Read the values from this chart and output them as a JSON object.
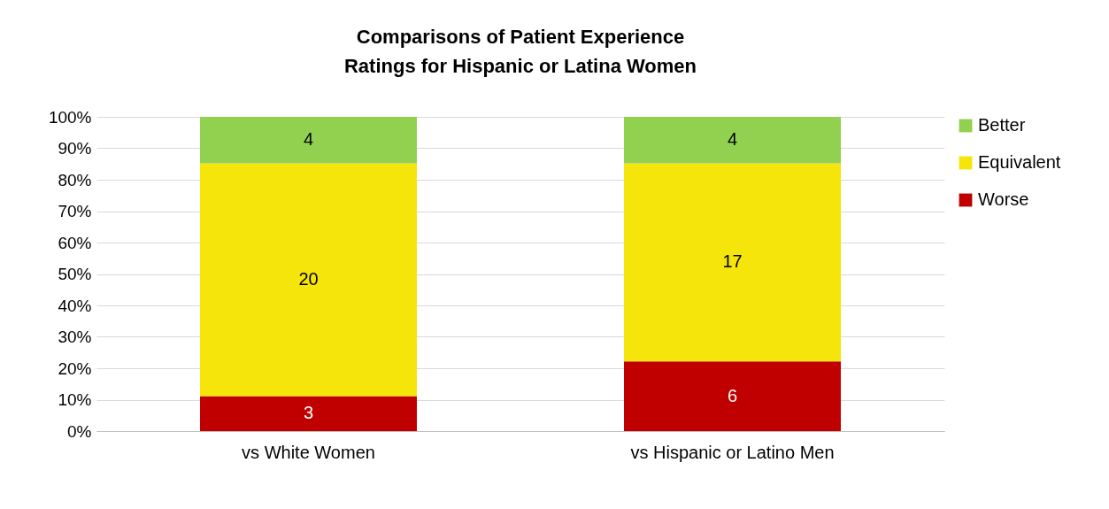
{
  "chart_data": {
    "type": "bar",
    "title": "Comparisons of Patient Experience Ratings for Hispanic or Latina Women",
    "categories": [
      "vs White Women",
      "vs Hispanic or Latino Men"
    ],
    "stacked": true,
    "series": [
      {
        "name": "Worse",
        "color": "#c00000",
        "values": [
          11.1,
          22.2
        ]
      },
      {
        "name": "Equivalent",
        "color": "#f5e50a",
        "values": [
          74.1,
          63.0
        ]
      },
      {
        "name": "Better",
        "color": "#92d050",
        "values": [
          14.8,
          14.8
        ]
      }
    ],
    "annotations": [
      "3",
      "6",
      "20",
      "17",
      "4",
      "4"
    ],
    "ylim": [
      0,
      100
    ],
    "yticks": [
      {
        "value": 0,
        "label": "0%"
      },
      {
        "value": 10,
        "label": "10%"
      },
      {
        "value": 20,
        "label": "20%"
      },
      {
        "value": 30,
        "label": "30%"
      },
      {
        "value": 40,
        "label": "40%"
      },
      {
        "value": 50,
        "label": "50%"
      },
      {
        "value": 60,
        "label": "60%"
      },
      {
        "value": 70,
        "label": "70%"
      },
      {
        "value": 80,
        "label": "80%"
      },
      {
        "value": 90,
        "label": "90%"
      },
      {
        "value": 100,
        "label": "100%"
      }
    ],
    "grid": "y",
    "legend": "right"
  }
}
